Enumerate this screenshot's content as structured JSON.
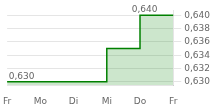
{
  "chart_data": {
    "type": "step",
    "categories": [
      "Fr",
      "Mo",
      "Di",
      "Mi",
      "Do",
      "Fr"
    ],
    "values": [
      0.63,
      0.63,
      0.63,
      0.63,
      0.635,
      0.64
    ],
    "color": "#008000",
    "ylim": [
      0.6295,
      0.6408
    ],
    "yticks": [
      {
        "value": 0.63,
        "label": "0,630"
      },
      {
        "value": 0.632,
        "label": "0,632"
      },
      {
        "value": 0.634,
        "label": "0,634"
      },
      {
        "value": 0.636,
        "label": "0,636"
      },
      {
        "value": 0.638,
        "label": "0,638"
      },
      {
        "value": 0.64,
        "label": "0,640"
      }
    ],
    "grid": "y",
    "annotations": [
      {
        "text": "0,640",
        "x": 3.75,
        "y": 0.6402
      },
      {
        "text": "0,630",
        "x": 0.05,
        "y": 0.63015
      }
    ]
  }
}
